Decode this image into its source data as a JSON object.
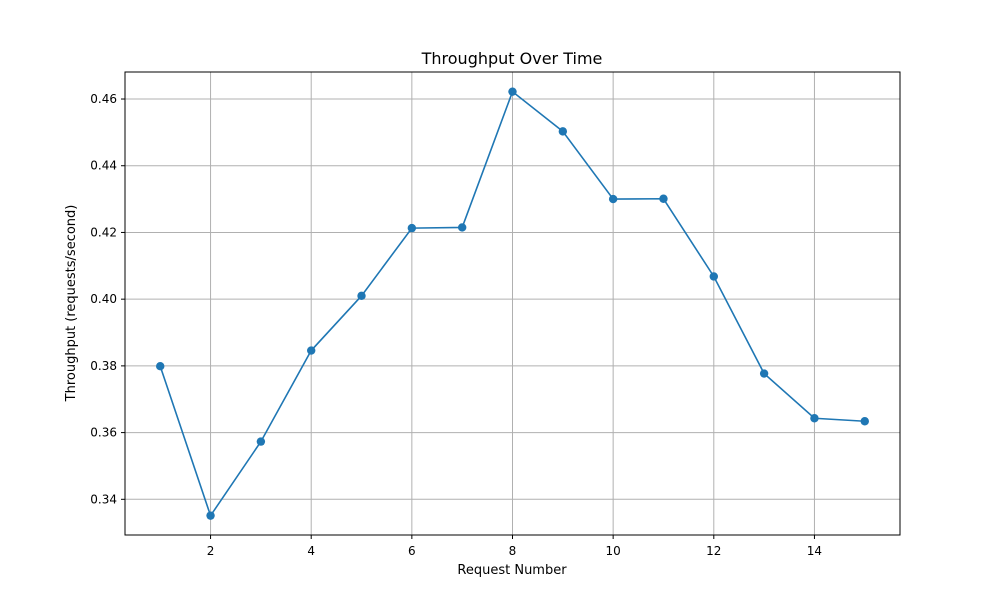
{
  "chart_data": {
    "type": "line",
    "title": "Throughput Over Time",
    "xlabel": "Request Number",
    "ylabel": "Throughput (requests/second)",
    "xlim": [
      0.3,
      15.7
    ],
    "ylim": [
      0.3293,
      0.4681
    ],
    "xticks": [
      2,
      4,
      6,
      8,
      10,
      12,
      14
    ],
    "yticks": [
      0.34,
      0.36,
      0.38,
      0.4,
      0.42,
      0.44,
      0.46
    ],
    "ytick_labels": [
      "0.34",
      "0.36",
      "0.38",
      "0.40",
      "0.42",
      "0.44",
      "0.46"
    ],
    "grid": true,
    "marker": "circle",
    "series": [
      {
        "color": "#1f77b4",
        "x": [
          1,
          2,
          3,
          4,
          5,
          6,
          7,
          8,
          9,
          10,
          11,
          12,
          13,
          14,
          15
        ],
        "y": [
          0.3799,
          0.3351,
          0.3573,
          0.3846,
          0.401,
          0.4213,
          0.4215,
          0.4622,
          0.4503,
          0.43,
          0.4301,
          0.4068,
          0.3777,
          0.3643,
          0.3634
        ]
      }
    ]
  }
}
